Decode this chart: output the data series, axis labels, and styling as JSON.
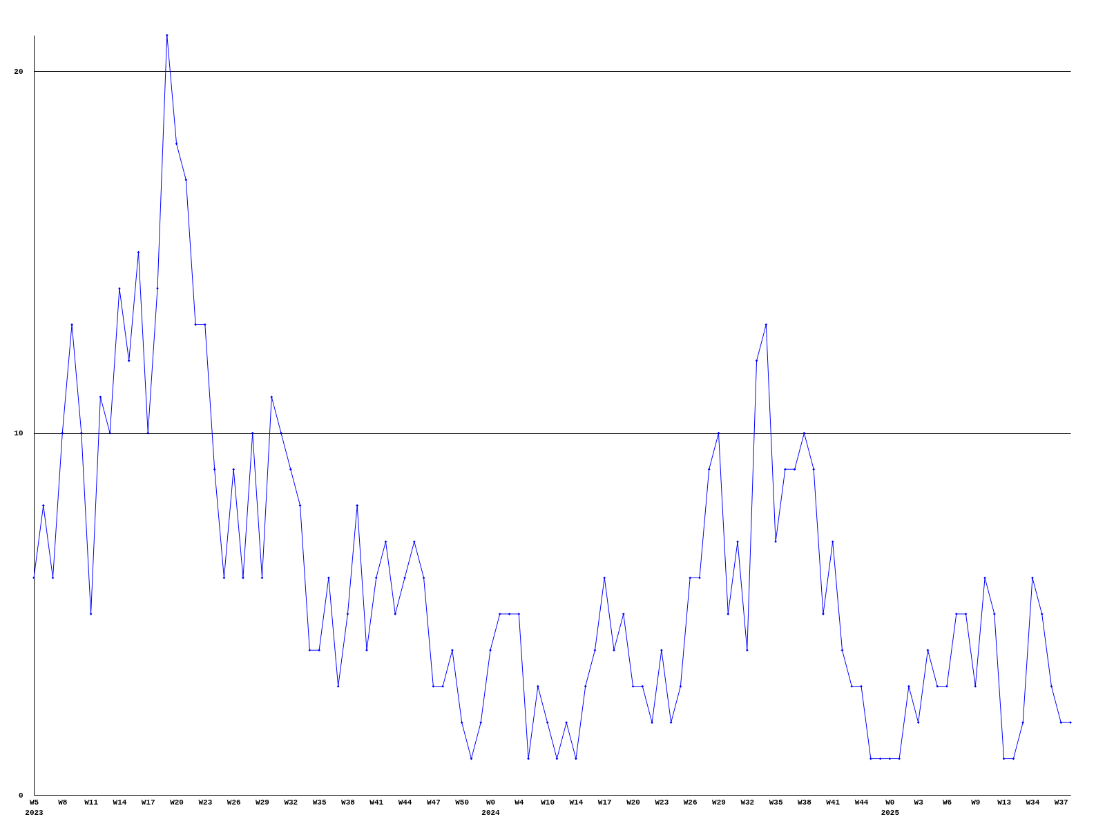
{
  "chart_data": {
    "type": "line",
    "categories": [
      "W5\n2023",
      null,
      null,
      "W8",
      null,
      null,
      "W11",
      null,
      null,
      "W14",
      null,
      null,
      "W17",
      null,
      null,
      "W20",
      null,
      null,
      "W23",
      null,
      null,
      "W26",
      null,
      null,
      "W29",
      null,
      null,
      "W32",
      null,
      null,
      "W35",
      null,
      null,
      "W38",
      null,
      null,
      "W41",
      null,
      null,
      "W44",
      null,
      null,
      "W47",
      null,
      null,
      "W50",
      null,
      null,
      "W0\n2024",
      null,
      null,
      "W4",
      null,
      null,
      "W10",
      null,
      null,
      "W14",
      null,
      null,
      "W17",
      null,
      null,
      "W20",
      null,
      null,
      "W23",
      null,
      null,
      "W26",
      null,
      null,
      "W29",
      null,
      null,
      "W32",
      null,
      null,
      "W35",
      null,
      null,
      "W38",
      null,
      null,
      "W41",
      null,
      null,
      "W44",
      null,
      null,
      "W0\n2025",
      null,
      null,
      "W3",
      null,
      null,
      "W6",
      null,
      null,
      "W9",
      null,
      null,
      "W13",
      null,
      null,
      "W34",
      null,
      null,
      "W37",
      null
    ],
    "series": [
      {
        "color": "#0000ff",
        "values": [
          6,
          8,
          6,
          10,
          13,
          10,
          5,
          11,
          10,
          14,
          12,
          15,
          10,
          14,
          21,
          18,
          17,
          13,
          13,
          9,
          6,
          9,
          6,
          10,
          6,
          11,
          10,
          9,
          8,
          4,
          4,
          6,
          3,
          5,
          8,
          4,
          6,
          7,
          5,
          6,
          7,
          6,
          3,
          3,
          4,
          2,
          1,
          2,
          4,
          5,
          5,
          5,
          1,
          3,
          2,
          1,
          2,
          1,
          3,
          4,
          6,
          4,
          5,
          3,
          3,
          2,
          4,
          2,
          3,
          6,
          6,
          9,
          10,
          5,
          7,
          4,
          12,
          13,
          7,
          9,
          9,
          10,
          9,
          5,
          7,
          4,
          3,
          3,
          1,
          1,
          1,
          1,
          3,
          2,
          4,
          3,
          3,
          5,
          5,
          3,
          6,
          5,
          1,
          1,
          2,
          6,
          5,
          3,
          2,
          2
        ]
      }
    ],
    "ylim": [
      0,
      21
    ],
    "yticks": [
      0,
      10,
      20
    ],
    "grid": "y",
    "marker": "diamond",
    "line_style": "solid"
  }
}
